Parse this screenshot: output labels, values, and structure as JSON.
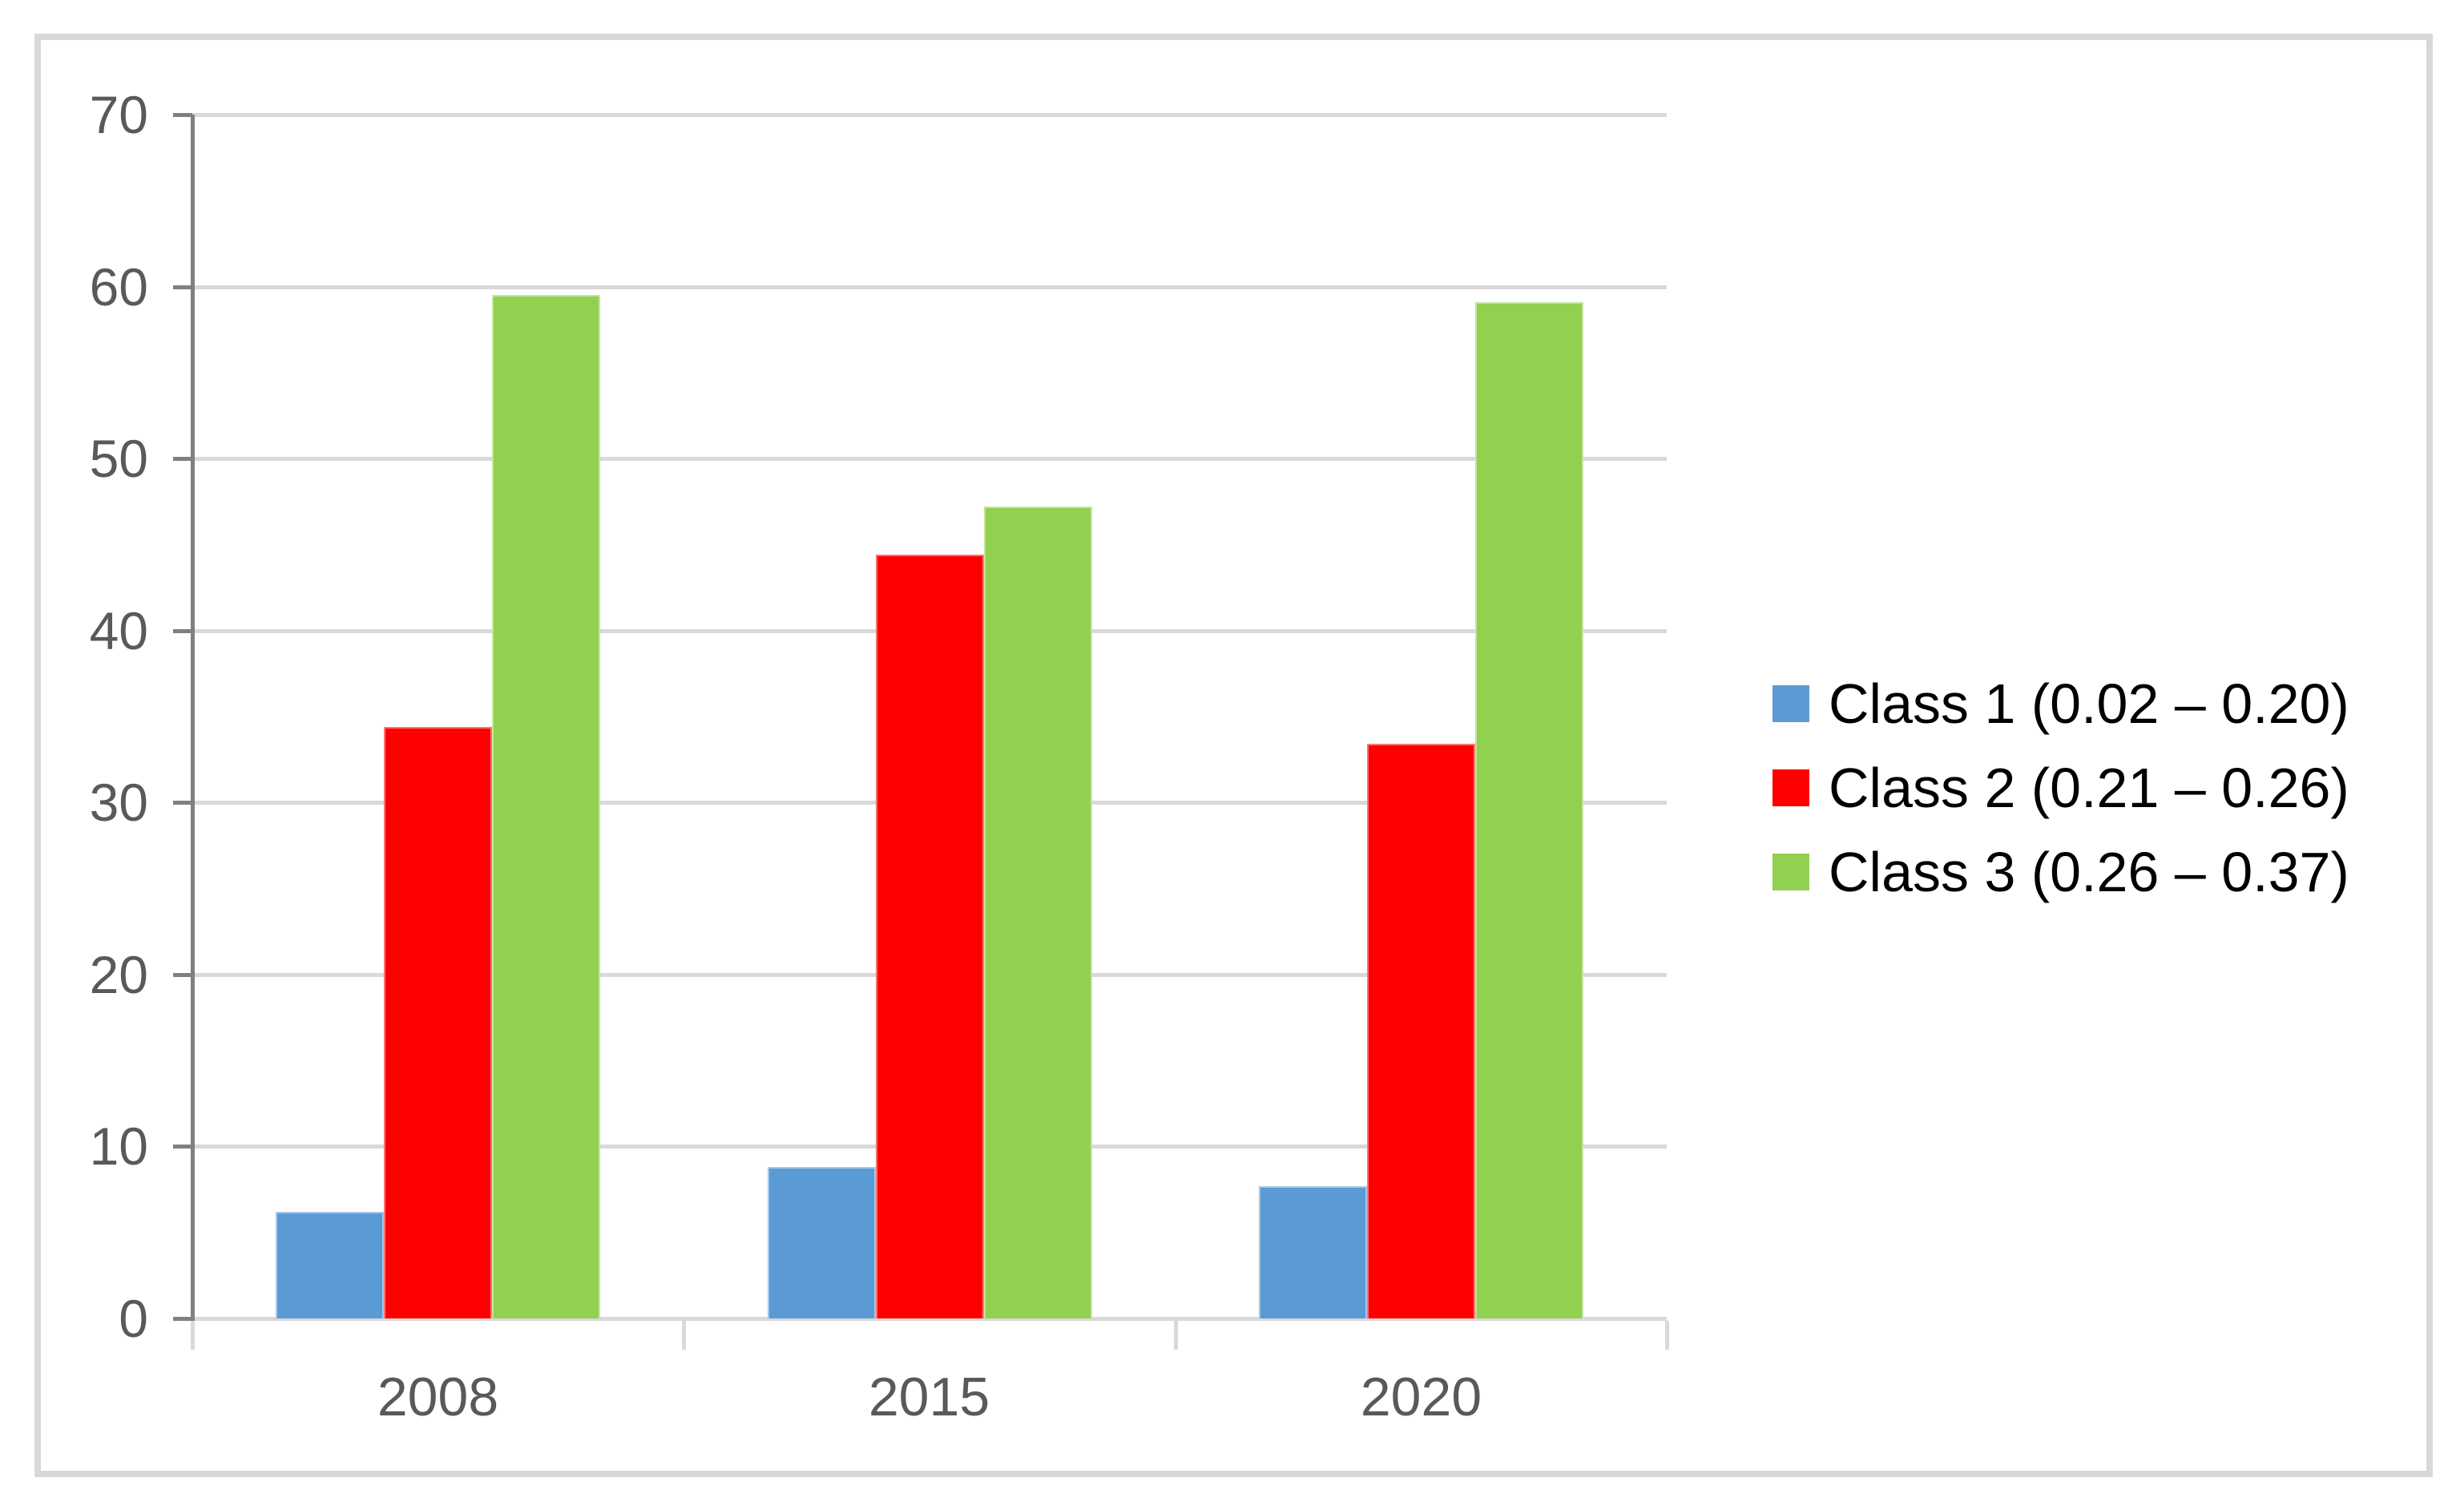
{
  "chart_data": {
    "type": "bar",
    "title": "",
    "categories": [
      "2008",
      "2015",
      "2020"
    ],
    "series": [
      {
        "name": "Class 1 (0.02 – 0.20)",
        "color": "#5B9BD5",
        "values": [
          6.2,
          8.8,
          7.7
        ]
      },
      {
        "name": "Class 2 (0.21 – 0.26)",
        "color": "#FF0000",
        "values": [
          34.4,
          44.4,
          33.4
        ]
      },
      {
        "name": "Class 3 (0.26 – 0.37)",
        "color": "#92D050",
        "values": [
          59.5,
          47.2,
          59.1
        ]
      }
    ],
    "xlabel": "",
    "ylabel": "",
    "ylim": [
      0,
      70
    ],
    "yticks": [
      0,
      10,
      20,
      30,
      40,
      50,
      60,
      70
    ],
    "grid": true,
    "legend_position": "right"
  },
  "colors": {
    "background": "#FFFFFF",
    "chart_border": "#D8D8D8",
    "gridline": "#D9D9D9",
    "axis_line": "#808080",
    "tick_label": "#595959",
    "legend_text": "#000000"
  }
}
